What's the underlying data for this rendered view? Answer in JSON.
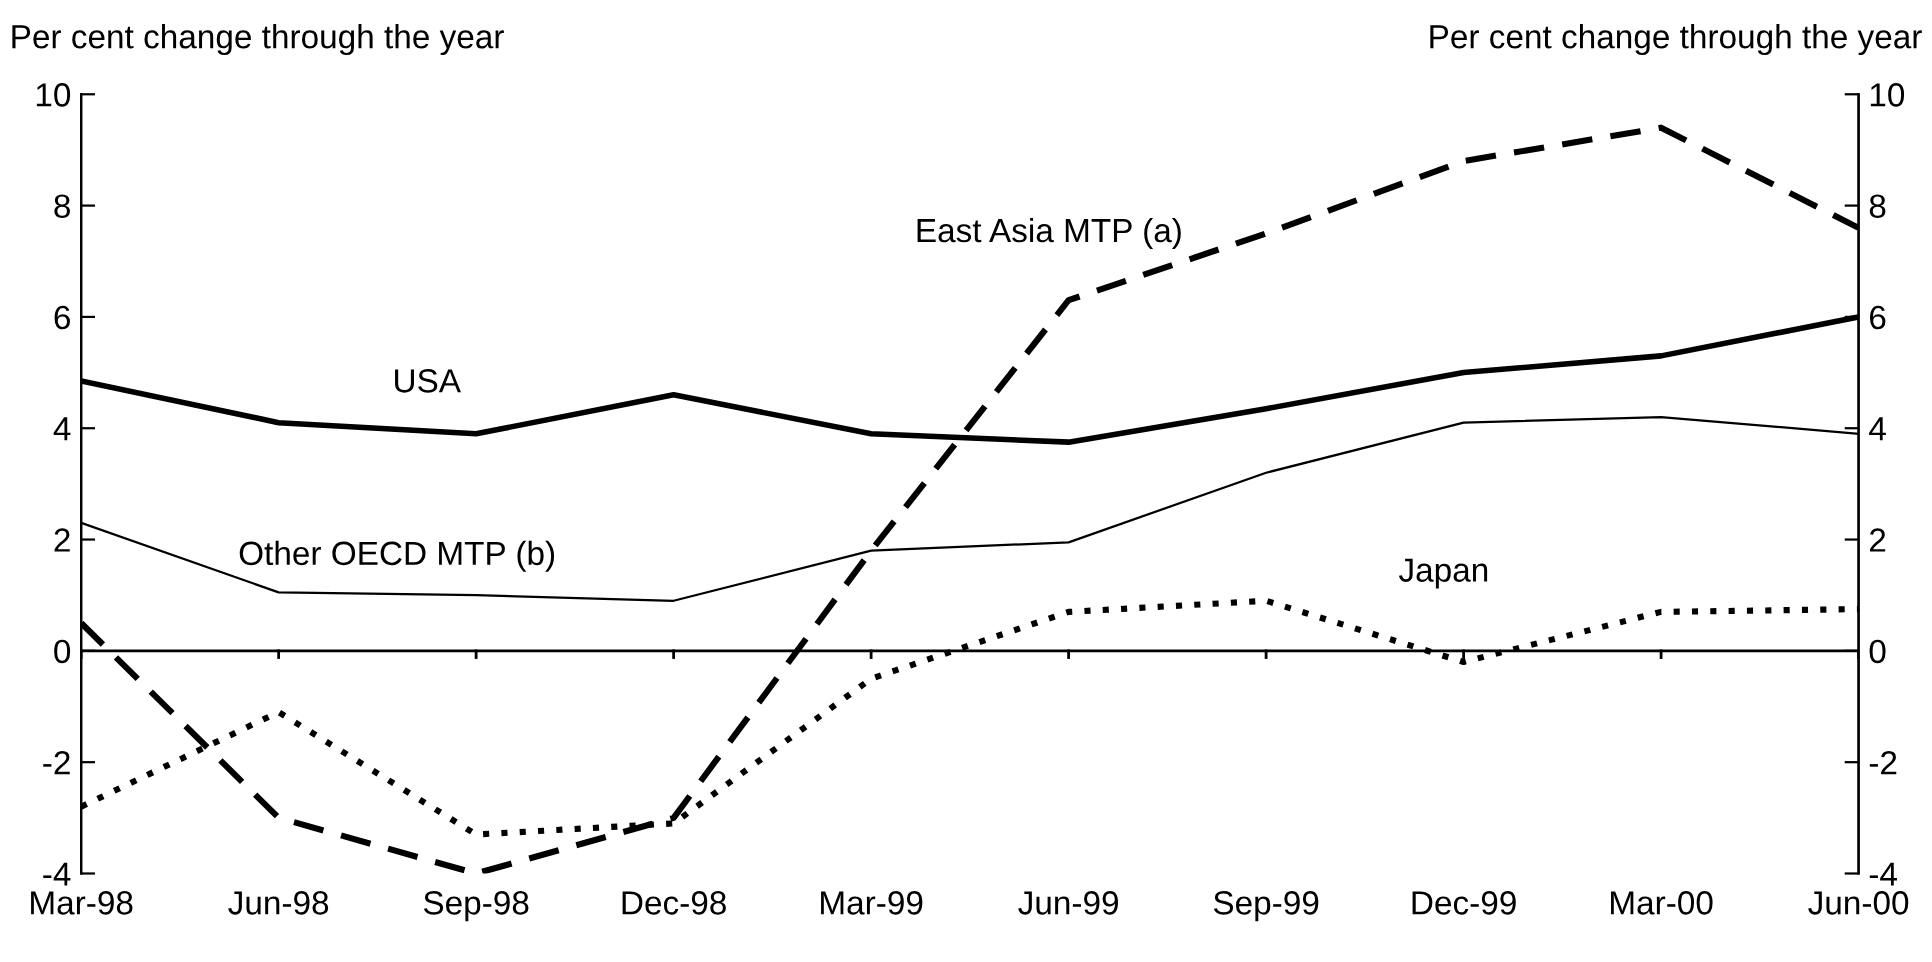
{
  "chart_data": {
    "type": "line",
    "ylabel": "Per cent change through the year",
    "y2label": "Per cent change through the year",
    "categories": [
      "Mar-98",
      "Jun-98",
      "Sep-98",
      "Dec-98",
      "Mar-99",
      "Jun-99",
      "Sep-99",
      "Dec-99",
      "Mar-00",
      "Jun-00"
    ],
    "series": [
      {
        "name": "USA",
        "color": "#000000",
        "line_style": "solid",
        "values": [
          4.85,
          4.1,
          3.9,
          4.6,
          3.9,
          3.75,
          4.35,
          5.0,
          5.3,
          6.0
        ]
      },
      {
        "name": "Other OECD MTP (b)",
        "color": "#000000",
        "line_style": "solid",
        "values": [
          2.3,
          1.05,
          1.0,
          0.9,
          1.8,
          1.95,
          3.2,
          4.1,
          4.2,
          3.9
        ]
      },
      {
        "name": "East Asia MTP (a)",
        "color": "#000000",
        "line_style": "dashed",
        "values": [
          0.5,
          -3.0,
          -4.0,
          -3.0,
          1.8,
          6.3,
          7.5,
          8.8,
          9.4,
          7.6
        ]
      },
      {
        "name": "Japan",
        "color": "#000000",
        "line_style": "dotted",
        "values": [
          -2.8,
          -1.1,
          -3.3,
          -3.1,
          -0.5,
          0.7,
          0.9,
          -0.2,
          0.7,
          0.75
        ]
      }
    ],
    "ylim": [
      -4,
      10
    ],
    "yticks": [
      -4,
      -2,
      0,
      2,
      4,
      6,
      8,
      10
    ],
    "y2lim": [
      -4,
      10
    ],
    "y2ticks": [
      -4,
      -2,
      0,
      2,
      4,
      6,
      8,
      10
    ],
    "ref_lines": [
      {
        "axis": "y",
        "value": 0,
        "color": "#000000"
      }
    ],
    "marker": "none",
    "grid": false,
    "legend": false
  }
}
